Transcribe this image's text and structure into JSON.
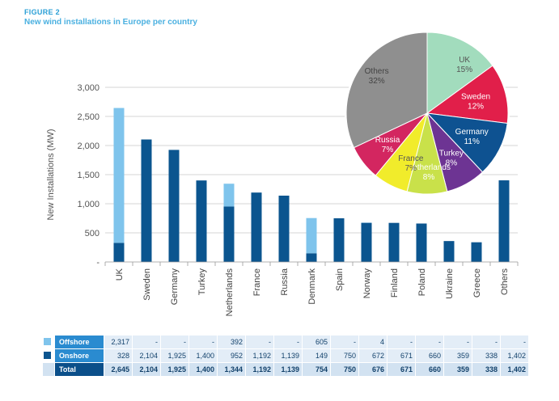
{
  "figure_label": "FIGURE 2",
  "figure_title": "New wind installations in Europe per country",
  "colors": {
    "offshore": "#7fc4ec",
    "onshore": "#0b558f",
    "axis": "#999999"
  },
  "chart_data": [
    {
      "type": "bar",
      "stacked": true,
      "categories": [
        "UK",
        "Sweden",
        "Germany",
        "Turkey",
        "Netherlands",
        "France",
        "Russia",
        "Denmark",
        "Spain",
        "Norway",
        "Finland",
        "Poland",
        "Ukraine",
        "Greece",
        "Others"
      ],
      "series": [
        {
          "name": "Onshore",
          "values": [
            328,
            2104,
            1925,
            1400,
            952,
            1192,
            1139,
            149,
            750,
            672,
            671,
            660,
            359,
            338,
            1402
          ]
        },
        {
          "name": "Offshore",
          "values": [
            2317,
            0,
            0,
            0,
            392,
            0,
            0,
            605,
            0,
            4,
            0,
            0,
            0,
            0,
            0
          ]
        }
      ],
      "ylabel": "New Installations (MW)",
      "yticks": [
        "-",
        "500",
        "1,000",
        "1,500",
        "2,000",
        "2,500",
        "3,000"
      ],
      "ylim": [
        0,
        3000
      ],
      "grid": true
    },
    {
      "type": "pie",
      "slices": [
        {
          "label": "UK",
          "pct_label": "15%",
          "value": 15,
          "color": "#a2dcbd",
          "text_color": "#555555"
        },
        {
          "label": "Sweden",
          "pct_label": "12%",
          "value": 12,
          "color": "#e11f4a",
          "text_color": "#ffffff"
        },
        {
          "label": "Germany",
          "pct_label": "11%",
          "value": 11,
          "color": "#0e5291",
          "text_color": "#ffffff"
        },
        {
          "label": "Turkey",
          "pct_label": "8%",
          "value": 8,
          "color": "#6d3493",
          "text_color": "#ffffff"
        },
        {
          "label": "Netherlands",
          "pct_label": "8%",
          "value": 8,
          "color": "#c9e14a",
          "text_color": "#ffffff"
        },
        {
          "label": "France",
          "pct_label": "7%",
          "value": 7,
          "color": "#f1ec2b",
          "text_color": "#555555"
        },
        {
          "label": "Russia",
          "pct_label": "7%",
          "value": 7,
          "color": "#d32660",
          "text_color": "#ffffff"
        },
        {
          "label": "Others",
          "pct_label": "32%",
          "value": 32,
          "color": "#8f8f8f",
          "text_color": "#444444"
        }
      ]
    }
  ],
  "table": {
    "rows": [
      {
        "label": "Offshore",
        "color": "#7fc4ec",
        "cells": [
          "2,317",
          "-",
          "-",
          "-",
          "392",
          "-",
          "-",
          "605",
          "-",
          "4",
          "-",
          "-",
          "-",
          "-",
          "-"
        ]
      },
      {
        "label": "Onshore",
        "color": "#0b558f",
        "cells": [
          "328",
          "2,104",
          "1,925",
          "1,400",
          "952",
          "1,192",
          "1,139",
          "149",
          "750",
          "672",
          "671",
          "660",
          "359",
          "338",
          "1,402"
        ]
      },
      {
        "label": "Total",
        "color": "",
        "cells": [
          "2,645",
          "2,104",
          "1,925",
          "1,400",
          "1,344",
          "1,192",
          "1,139",
          "754",
          "750",
          "676",
          "671",
          "660",
          "359",
          "338",
          "1,402"
        ]
      }
    ]
  }
}
